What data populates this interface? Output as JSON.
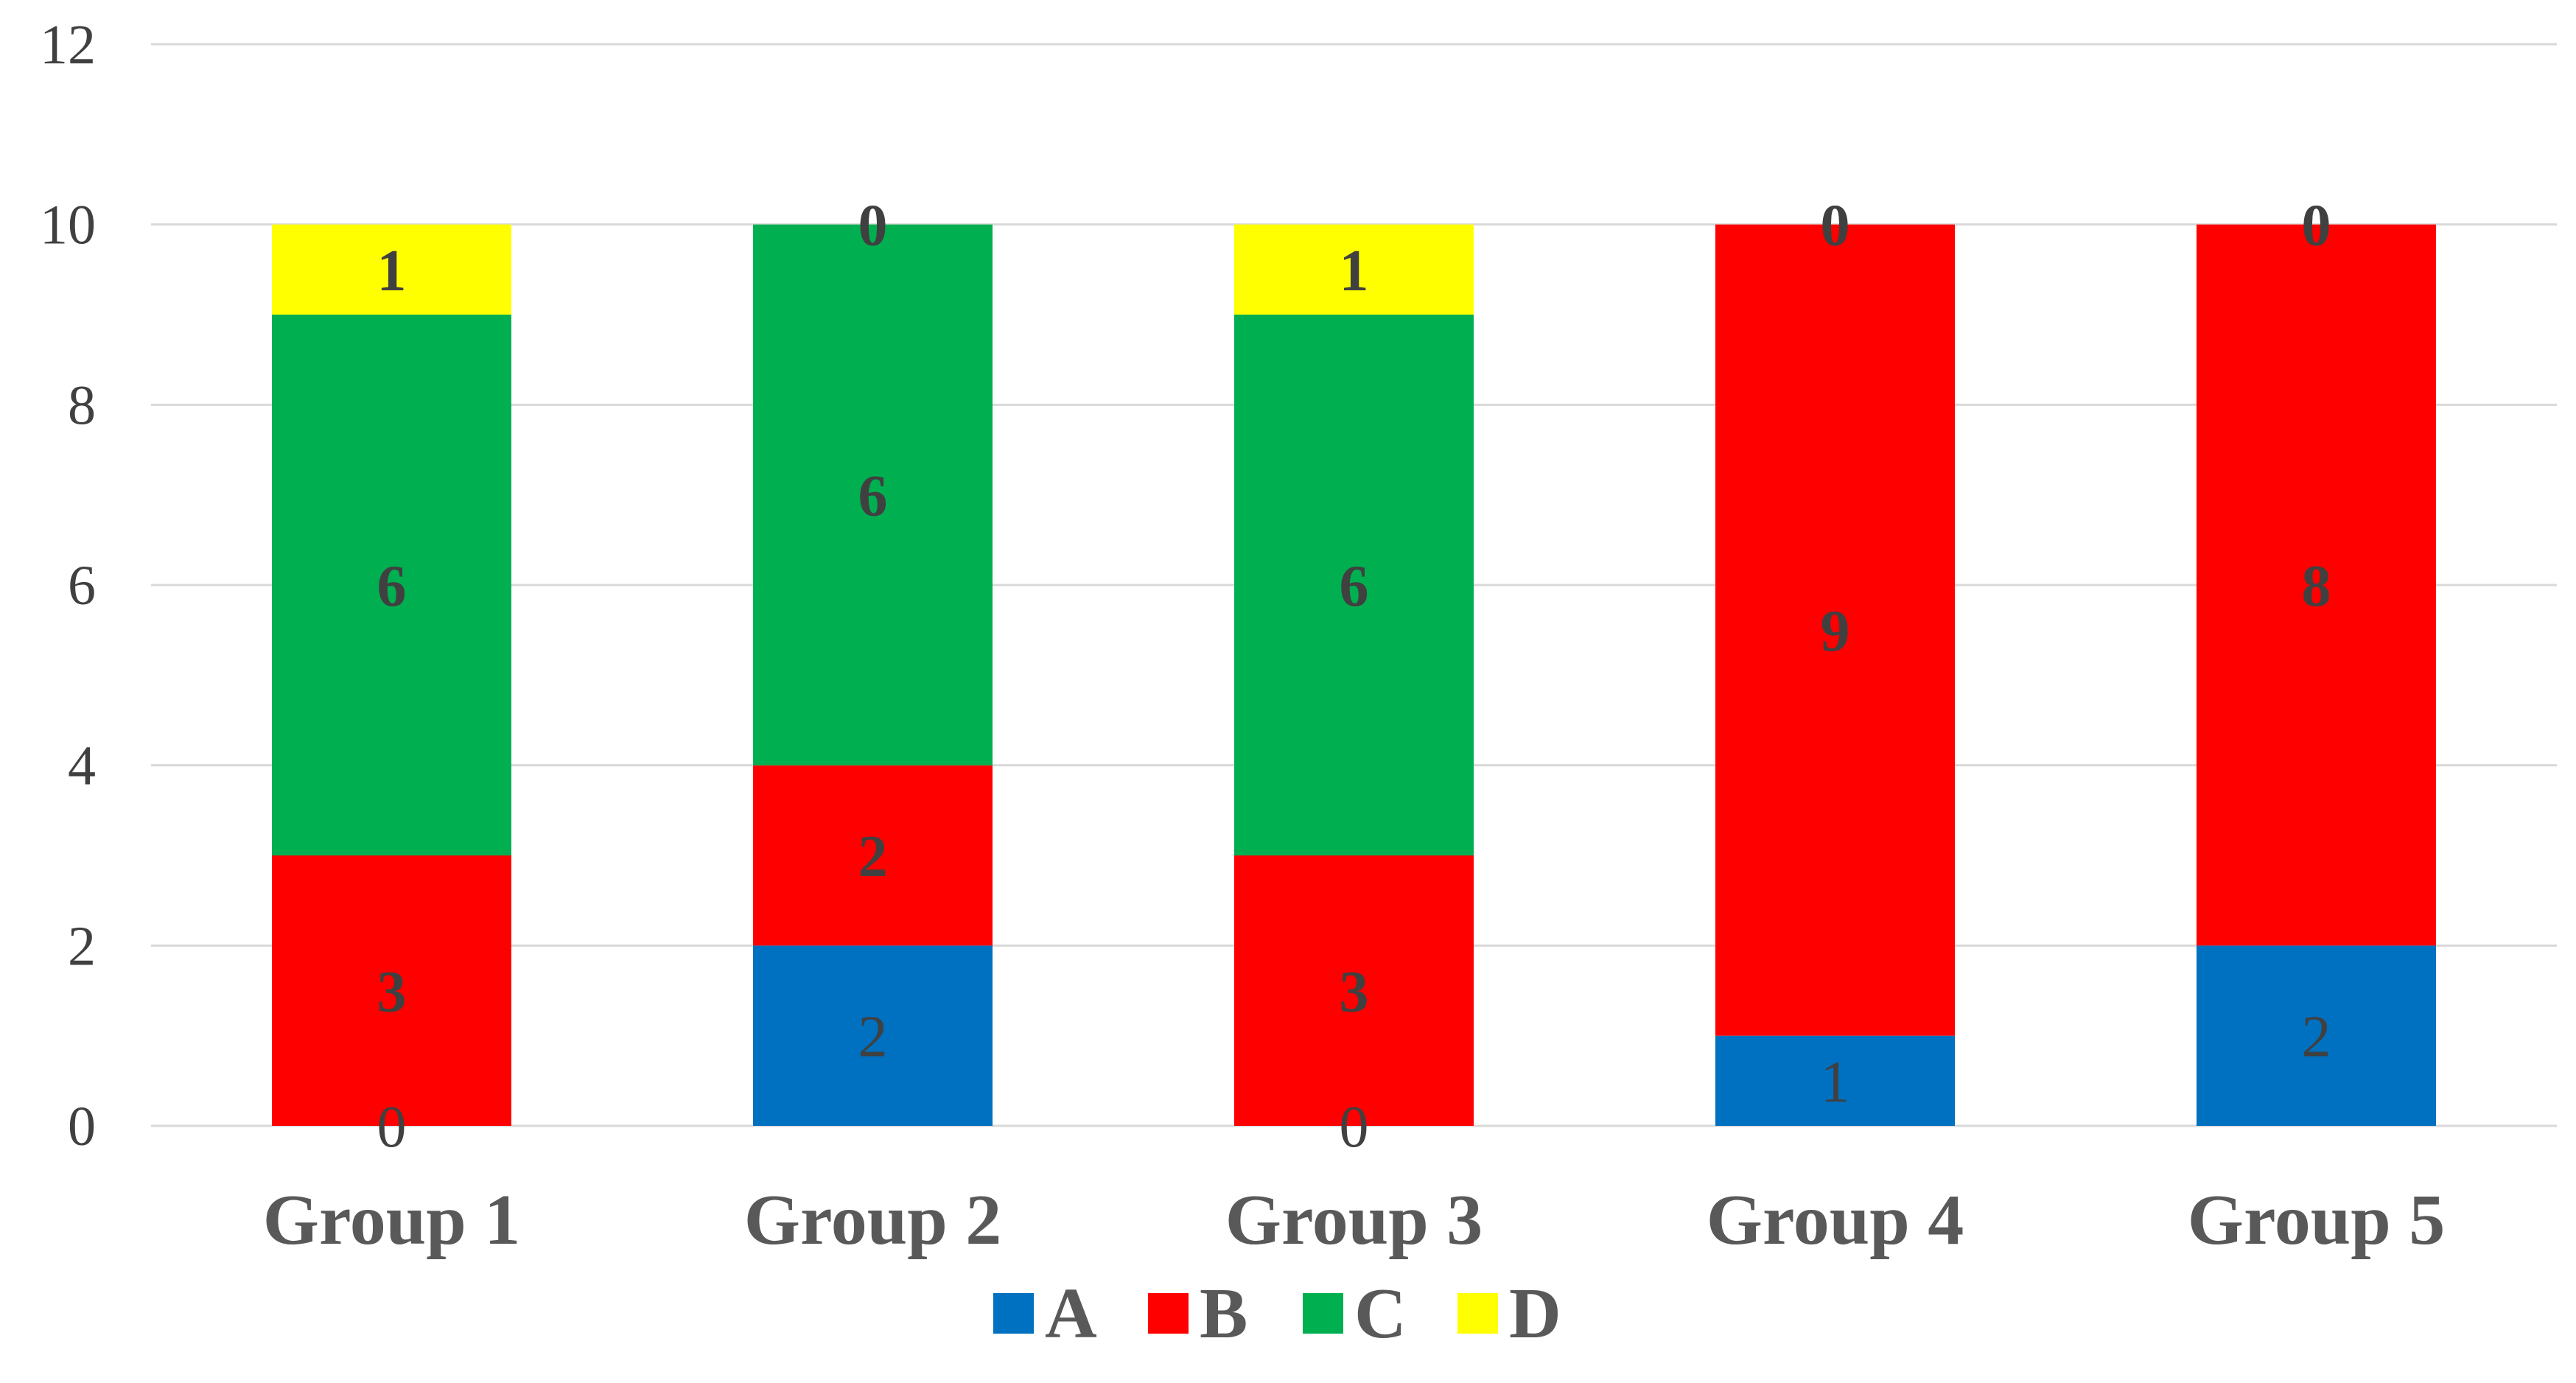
{
  "chart_data": {
    "type": "bar",
    "stacked": true,
    "categories": [
      "Group 1",
      "Group 2",
      "Group 3",
      "Group 4",
      "Group 5"
    ],
    "series": [
      {
        "name": "A",
        "color": "#0070C0",
        "values": [
          0,
          2,
          0,
          1,
          2
        ]
      },
      {
        "name": "B",
        "color": "#FF0000",
        "values": [
          3,
          2,
          3,
          9,
          8
        ]
      },
      {
        "name": "C",
        "color": "#00B050",
        "values": [
          6,
          6,
          6,
          0,
          0
        ]
      },
      {
        "name": "D",
        "color": "#FFFF00",
        "values": [
          1,
          0,
          1,
          0,
          0
        ]
      }
    ],
    "ylim": [
      0,
      12
    ],
    "yticks": [
      0,
      2,
      4,
      6,
      8,
      10,
      12
    ],
    "title": "",
    "xlabel": "",
    "ylabel": "",
    "grid": true,
    "legend": "bottom"
  }
}
